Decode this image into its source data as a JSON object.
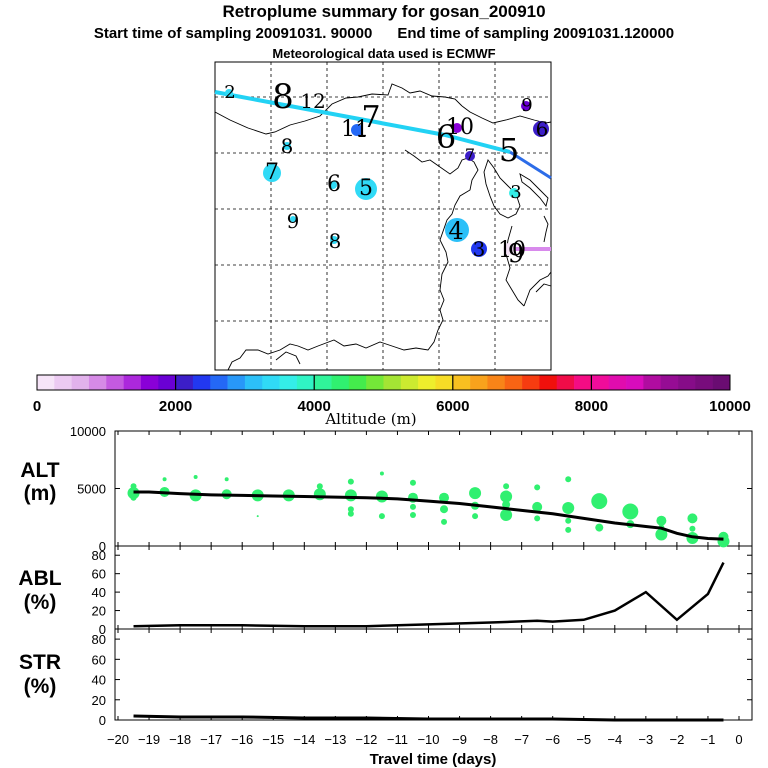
{
  "header": {
    "title": "Retroplume summary for gosan_200910",
    "start_label": "Start time of sampling 20091031. 90000",
    "end_label": "End time of sampling 20091031.120000",
    "met_label": "Meteorological data used is ECMWF"
  },
  "map": {
    "plume_labels": [
      {
        "text": "2"
      },
      {
        "text": "8"
      },
      {
        "text": "12"
      },
      {
        "text": "7"
      },
      {
        "text": "11"
      },
      {
        "text": "6"
      },
      {
        "text": "10"
      },
      {
        "text": "5"
      },
      {
        "text": "8"
      },
      {
        "text": "7"
      },
      {
        "text": "6"
      },
      {
        "text": "5"
      },
      {
        "text": "3"
      },
      {
        "text": "9"
      },
      {
        "text": "8"
      },
      {
        "text": "4"
      },
      {
        "text": "3"
      },
      {
        "text": "10"
      },
      {
        "text": "9"
      },
      {
        "text": "6"
      },
      {
        "text": "7"
      },
      {
        "text": "1"
      },
      {
        "text": "9"
      }
    ]
  },
  "colorbar": {
    "ticks": [
      "0",
      "2000",
      "4000",
      "6000",
      "8000",
      "10000"
    ],
    "label": "Altitude (m)",
    "colors": [
      "#f6e4f8",
      "#eccaf2",
      "#e2b2ec",
      "#d68ae6",
      "#c45ae0",
      "#ac28dc",
      "#8a00d8",
      "#6a00d4",
      "#3c1ec8",
      "#2238f0",
      "#2468f6",
      "#2898f8",
      "#2cc0f8",
      "#30daf6",
      "#34eee8",
      "#30f4c4",
      "#30f49a",
      "#30f070",
      "#44ec4c",
      "#74e838",
      "#a4e434",
      "#ccea30",
      "#eeee2c",
      "#f6dc26",
      "#f8c020",
      "#f8a21c",
      "#f88418",
      "#f86414",
      "#f63c10",
      "#f0100c",
      "#f00c48",
      "#f40c84",
      "#f00c9a",
      "#e00cae",
      "#d80cbc",
      "#b00ca0",
      "#960c94",
      "#860c88",
      "#780c7c",
      "#6a0c72"
    ]
  },
  "chart_data": [
    {
      "type": "scatter",
      "panel": "ALT",
      "title": "ALT (m)",
      "ylabel_line1": "ALT",
      "ylabel_line2": "(m)",
      "ylim": [
        0,
        10000
      ],
      "y_ticks": [
        "10000",
        "5000",
        "0"
      ],
      "mean_line": {
        "x": [
          -19.5,
          -19,
          -18,
          -17,
          -16,
          -15,
          -14,
          -13,
          -12,
          -11,
          -10,
          -9,
          -8,
          -7,
          -6,
          -5,
          -4,
          -3,
          -2.5,
          -2,
          -1.5,
          -1,
          -0.5
        ],
        "y": [
          4700,
          4700,
          4550,
          4450,
          4400,
          4350,
          4300,
          4250,
          4200,
          4100,
          3900,
          3700,
          3400,
          3100,
          2800,
          2400,
          2000,
          1700,
          1550,
          1100,
          800,
          650,
          600
        ]
      },
      "points": [
        {
          "x": -19.5,
          "y": 4600,
          "s": 6
        },
        {
          "x": -19.5,
          "y": 5200,
          "s": 3
        },
        {
          "x": -19.5,
          "y": 4200,
          "s": 3
        },
        {
          "x": -18.5,
          "y": 4700,
          "s": 5
        },
        {
          "x": -18.5,
          "y": 5800,
          "s": 2
        },
        {
          "x": -17.5,
          "y": 4400,
          "s": 6
        },
        {
          "x": -17.5,
          "y": 6000,
          "s": 2
        },
        {
          "x": -16.5,
          "y": 4500,
          "s": 5
        },
        {
          "x": -16.5,
          "y": 5800,
          "s": 2
        },
        {
          "x": -15.5,
          "y": 4400,
          "s": 6
        },
        {
          "x": -15.5,
          "y": 2600,
          "s": 1
        },
        {
          "x": -14.5,
          "y": 4400,
          "s": 6
        },
        {
          "x": -13.5,
          "y": 4500,
          "s": 6
        },
        {
          "x": -13.5,
          "y": 5200,
          "s": 3
        },
        {
          "x": -12.5,
          "y": 4400,
          "s": 6
        },
        {
          "x": -12.5,
          "y": 5600,
          "s": 3
        },
        {
          "x": -12.5,
          "y": 3200,
          "s": 3
        },
        {
          "x": -12.5,
          "y": 2800,
          "s": 3
        },
        {
          "x": -11.5,
          "y": 4300,
          "s": 6
        },
        {
          "x": -11.5,
          "y": 6300,
          "s": 2
        },
        {
          "x": -11.5,
          "y": 2600,
          "s": 3
        },
        {
          "x": -10.5,
          "y": 4200,
          "s": 5
        },
        {
          "x": -10.5,
          "y": 5500,
          "s": 3
        },
        {
          "x": -10.5,
          "y": 3400,
          "s": 3
        },
        {
          "x": -10.5,
          "y": 2700,
          "s": 3
        },
        {
          "x": -9.5,
          "y": 4200,
          "s": 5
        },
        {
          "x": -9.5,
          "y": 3200,
          "s": 4
        },
        {
          "x": -9.5,
          "y": 2100,
          "s": 3
        },
        {
          "x": -8.5,
          "y": 4600,
          "s": 6
        },
        {
          "x": -8.5,
          "y": 3500,
          "s": 4
        },
        {
          "x": -8.5,
          "y": 2600,
          "s": 3
        },
        {
          "x": -7.5,
          "y": 4300,
          "s": 6
        },
        {
          "x": -7.5,
          "y": 3600,
          "s": 4
        },
        {
          "x": -7.5,
          "y": 2700,
          "s": 6
        },
        {
          "x": -7.5,
          "y": 5200,
          "s": 3
        },
        {
          "x": -6.5,
          "y": 3400,
          "s": 5
        },
        {
          "x": -6.5,
          "y": 5100,
          "s": 3
        },
        {
          "x": -6.5,
          "y": 2400,
          "s": 3
        },
        {
          "x": -5.5,
          "y": 3300,
          "s": 6
        },
        {
          "x": -5.5,
          "y": 2200,
          "s": 3
        },
        {
          "x": -5.5,
          "y": 1400,
          "s": 3
        },
        {
          "x": -5.5,
          "y": 5800,
          "s": 3
        },
        {
          "x": -4.5,
          "y": 3900,
          "s": 8
        },
        {
          "x": -4.5,
          "y": 1600,
          "s": 4
        },
        {
          "x": -3.5,
          "y": 3000,
          "s": 8
        },
        {
          "x": -3.5,
          "y": 1900,
          "s": 4
        },
        {
          "x": -2.5,
          "y": 2200,
          "s": 5
        },
        {
          "x": -2.5,
          "y": 1600,
          "s": 3
        },
        {
          "x": -2.5,
          "y": 1000,
          "s": 6
        },
        {
          "x": -1.5,
          "y": 2400,
          "s": 5
        },
        {
          "x": -1.5,
          "y": 1500,
          "s": 3
        },
        {
          "x": -1.5,
          "y": 700,
          "s": 6
        },
        {
          "x": -0.5,
          "y": 800,
          "s": 5
        },
        {
          "x": -0.5,
          "y": 400,
          "s": 6
        }
      ]
    },
    {
      "type": "line",
      "panel": "ABL",
      "title": "ABL (%)",
      "ylabel_line1": "ABL",
      "ylabel_line2": "(%)",
      "ylim": [
        0,
        90
      ],
      "y_ticks": [
        "80",
        "60",
        "40",
        "20",
        "0"
      ],
      "x": [
        -19.5,
        -18,
        -16,
        -14,
        -12,
        -10,
        -8,
        -6.5,
        -6,
        -5,
        -4,
        -3,
        -2,
        -1,
        -0.5
      ],
      "y": [
        3,
        4,
        4,
        3,
        3,
        5,
        7,
        9,
        8,
        10,
        20,
        40,
        10,
        38,
        72
      ]
    },
    {
      "type": "line",
      "panel": "STR",
      "title": "STR (%)",
      "ylabel_line1": "STR",
      "ylabel_line2": "(%)",
      "ylim": [
        0,
        90
      ],
      "y_ticks": [
        "80",
        "60",
        "40",
        "20",
        "0"
      ],
      "x": [
        -19.5,
        -18,
        -16,
        -14,
        -12,
        -10,
        -8,
        -6,
        -4,
        -2,
        -0.5
      ],
      "y": [
        4,
        3,
        3,
        2,
        2,
        1,
        1,
        1,
        0,
        0,
        0
      ]
    }
  ],
  "x_axis": {
    "ticks": [
      "−20",
      "−19",
      "−18",
      "−17",
      "−16",
      "−15",
      "−14",
      "−13",
      "−12",
      "−11",
      "−10",
      "−9",
      "−8",
      "−7",
      "−6",
      "−5",
      "−4",
      "−3",
      "−2",
      "−1",
      "0"
    ],
    "label": "Travel time (days)",
    "xlim": [
      -20,
      0
    ]
  }
}
